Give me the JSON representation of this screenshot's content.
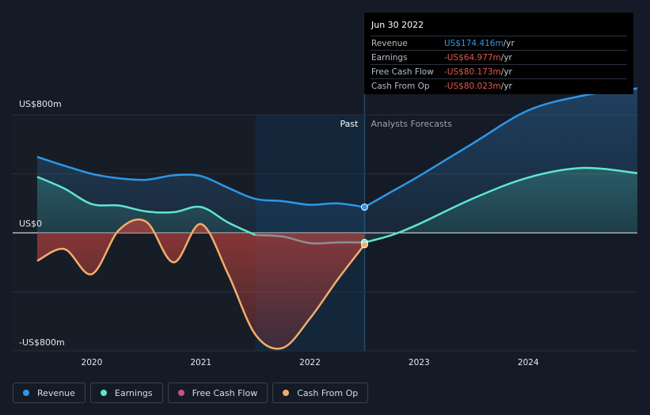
{
  "tooltip": {
    "date": "Jun 30 2022",
    "rows": [
      {
        "label": "Revenue",
        "value": "US$174.416m",
        "unit": " /yr"
      },
      {
        "label": "Earnings",
        "value": "-US$64.977m",
        "unit": " /yr"
      },
      {
        "label": "Free Cash Flow",
        "value": "-US$80.173m",
        "unit": " /yr"
      },
      {
        "label": "Cash From Op",
        "value": "-US$80.023m",
        "unit": " /yr"
      }
    ]
  },
  "legend": [
    {
      "label": "Revenue",
      "color": "#2d97e7"
    },
    {
      "label": "Earnings",
      "color": "#5ee6cf"
    },
    {
      "label": "Free Cash Flow",
      "color": "#c94f8e"
    },
    {
      "label": "Cash From Op",
      "color": "#f0ae6a"
    }
  ],
  "chart_data": {
    "type": "area",
    "y_unit": "US$ millions",
    "ylim": [
      -800,
      800
    ],
    "xlim": [
      2019.5,
      2025.0
    ],
    "y_tick_labels": [
      {
        "value": 800,
        "label": "US$800m"
      },
      {
        "value": 0,
        "label": "US$0"
      },
      {
        "value": -800,
        "label": "-US$800m"
      }
    ],
    "x_tick_labels": [
      {
        "value": 2020,
        "label": "2020"
      },
      {
        "value": 2021,
        "label": "2021"
      },
      {
        "value": 2022,
        "label": "2022"
      },
      {
        "value": 2023,
        "label": "2023"
      },
      {
        "value": 2024,
        "label": "2024"
      }
    ],
    "past_label": "Past",
    "forecast_label": "Analysts Forecasts",
    "divider_x": 2022.5,
    "highlight_start_x": 2021.5,
    "series": [
      {
        "name": "Revenue",
        "color": "#2d97e7",
        "points": [
          [
            2019.5,
            515
          ],
          [
            2019.75,
            455
          ],
          [
            2020.0,
            400
          ],
          [
            2020.25,
            370
          ],
          [
            2020.5,
            360
          ],
          [
            2020.75,
            390
          ],
          [
            2021.0,
            385
          ],
          [
            2021.25,
            305
          ],
          [
            2021.5,
            230
          ],
          [
            2021.75,
            215
          ],
          [
            2022.0,
            190
          ],
          [
            2022.25,
            200
          ],
          [
            2022.5,
            174.416
          ]
        ],
        "forecast": [
          [
            2022.5,
            174.416
          ],
          [
            2022.75,
            280
          ],
          [
            2023.0,
            385
          ],
          [
            2023.5,
            610
          ],
          [
            2024.0,
            830
          ],
          [
            2024.5,
            930
          ],
          [
            2025.0,
            980
          ]
        ]
      },
      {
        "name": "Earnings",
        "color": "#5ee6cf",
        "points": [
          [
            2019.5,
            380
          ],
          [
            2019.75,
            300
          ],
          [
            2020.0,
            195
          ],
          [
            2020.25,
            185
          ],
          [
            2020.5,
            145
          ],
          [
            2020.75,
            140
          ],
          [
            2021.0,
            175
          ],
          [
            2021.25,
            70
          ],
          [
            2021.5,
            -15
          ],
          [
            2021.75,
            -25
          ],
          [
            2022.0,
            -70
          ],
          [
            2022.25,
            -65
          ],
          [
            2022.5,
            -64.977
          ]
        ],
        "forecast": [
          [
            2022.5,
            -64.977
          ],
          [
            2022.75,
            -15
          ],
          [
            2023.0,
            60
          ],
          [
            2023.5,
            235
          ],
          [
            2024.0,
            375
          ],
          [
            2024.5,
            440
          ],
          [
            2025.0,
            405
          ]
        ]
      },
      {
        "name": "Free Cash Flow",
        "color": "#c94f8e",
        "points": [
          [
            2019.5,
            -190
          ],
          [
            2019.75,
            -110
          ],
          [
            2020.0,
            -280
          ],
          [
            2020.25,
            20
          ],
          [
            2020.5,
            75
          ],
          [
            2020.75,
            -200
          ],
          [
            2021.0,
            60
          ],
          [
            2021.25,
            -280
          ],
          [
            2021.5,
            -690
          ],
          [
            2021.75,
            -780
          ],
          [
            2022.0,
            -580
          ],
          [
            2022.25,
            -320
          ],
          [
            2022.5,
            -80.173
          ]
        ]
      },
      {
        "name": "Cash From Op",
        "color": "#f0ae6a",
        "points": [
          [
            2019.5,
            -190
          ],
          [
            2019.75,
            -110
          ],
          [
            2020.0,
            -280
          ],
          [
            2020.25,
            20
          ],
          [
            2020.5,
            75
          ],
          [
            2020.75,
            -200
          ],
          [
            2021.0,
            60
          ],
          [
            2021.25,
            -280
          ],
          [
            2021.5,
            -690
          ],
          [
            2021.75,
            -780
          ],
          [
            2022.0,
            -580
          ],
          [
            2022.25,
            -320
          ],
          [
            2022.5,
            -80.023
          ]
        ]
      }
    ]
  }
}
